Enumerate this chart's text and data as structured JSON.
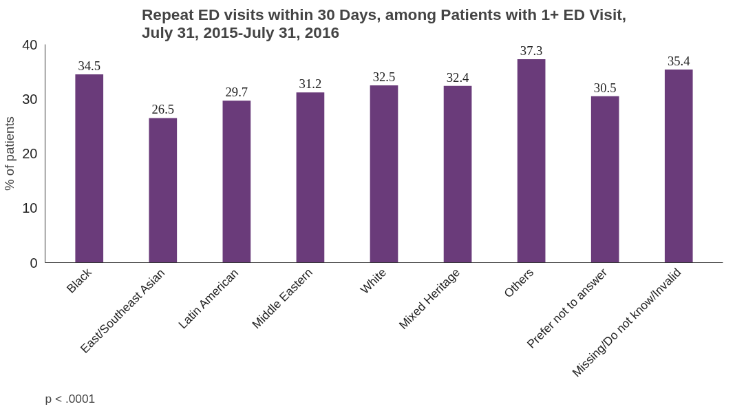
{
  "chart_data": {
    "type": "bar",
    "title": "Repeat ED visits within 30 Days, among Patients with 1+ ED Visit,\nJuly 31, 2015-July 31, 2016",
    "ylabel": "% of patients",
    "categories": [
      "Black",
      "East/Southeast Asian",
      "Latin American",
      "Middle Eastern",
      "White",
      "Mixed Heritage",
      "Others",
      "Prefer not to answer",
      "Missing/Do not know/Invalid"
    ],
    "values": [
      34.5,
      26.5,
      29.7,
      31.2,
      32.5,
      32.4,
      37.3,
      30.5,
      35.4
    ],
    "color": "#6a3b7a",
    "ylim": [
      0,
      40
    ],
    "yticks": [
      0,
      10,
      20,
      30,
      40
    ],
    "data_labels": true,
    "annotations": [
      "p < .0001"
    ]
  }
}
